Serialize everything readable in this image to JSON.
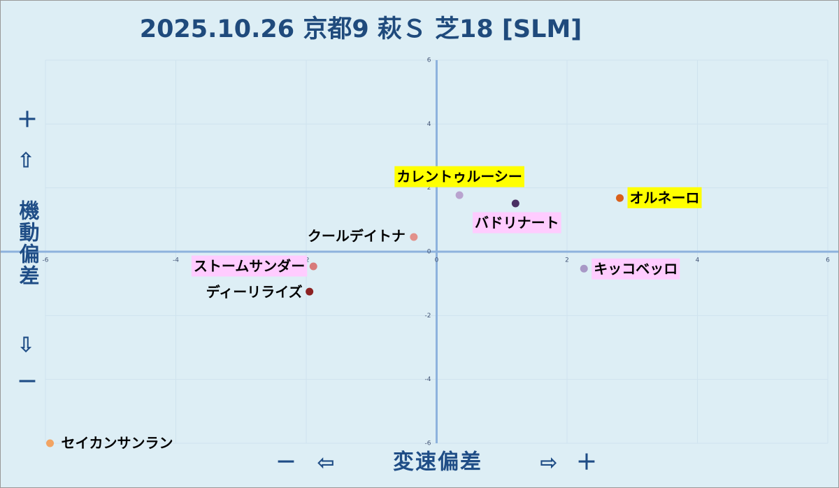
{
  "chart_data": {
    "type": "scatter",
    "title": "2025.10.26 京都9 萩Ｓ 芝18 [SLM]",
    "xlabel": "変速偏差",
    "ylabel": "機動偏差",
    "signs": {
      "plus": "＋",
      "minus": "－",
      "up": "⇧",
      "down": "⇩",
      "left": "⇦",
      "right": "⇨"
    },
    "xlim": [
      -6,
      6
    ],
    "ylim": [
      -6,
      6
    ],
    "xticks": [
      -6,
      -4,
      -2,
      0,
      2,
      4,
      6
    ],
    "yticks": [
      -6,
      -4,
      -2,
      0,
      2,
      4,
      6
    ],
    "grid": true,
    "series": [
      {
        "name": "カレントゥルーシー",
        "color": "#b9a3cf",
        "label_color": "#ffff00",
        "x": [
          0.35
        ],
        "values": [
          1.77
        ]
      },
      {
        "name": "バドリナート",
        "color": "#4b2f63",
        "label_color": "#ffccff",
        "x": [
          1.21
        ],
        "values": [
          1.51
        ]
      },
      {
        "name": "オルネーロ",
        "color": "#d9601b",
        "label_color": "#ffff00",
        "x": [
          2.81
        ],
        "values": [
          1.68
        ]
      },
      {
        "name": "クールデイトナ",
        "color": "#e2918b",
        "x": [
          -0.35
        ],
        "values": [
          0.46
        ]
      },
      {
        "name": "キッコベッロ",
        "color": "#a898c6",
        "label_color": "#ffccff",
        "x": [
          2.26
        ],
        "values": [
          -0.53
        ]
      },
      {
        "name": "ストームサンダー",
        "color": "#d87a7a",
        "label_color": "#ffccff",
        "x": [
          -1.89
        ],
        "values": [
          -0.46
        ]
      },
      {
        "name": "ディーリライズ",
        "color": "#8c2222",
        "x": [
          -1.95
        ],
        "values": [
          -1.25
        ]
      },
      {
        "name": "セイカンサンラン",
        "color": "#f2a463",
        "x": [
          -5.93
        ],
        "values": [
          -6.0
        ]
      }
    ]
  }
}
